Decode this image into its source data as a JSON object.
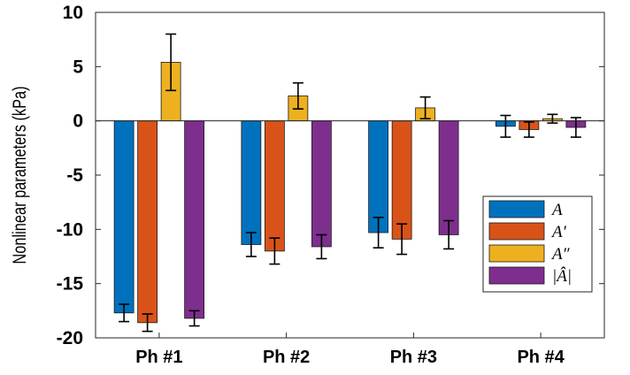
{
  "chart_data": {
    "type": "bar",
    "title": "",
    "xlabel": "",
    "ylabel": "Nonlinear parameters (kPa)",
    "ylim": [
      -20,
      10
    ],
    "yticks": [
      10,
      5,
      0,
      -5,
      -10,
      -15,
      -20
    ],
    "categories": [
      "Ph #1",
      "Ph #2",
      "Ph #3",
      "Ph #4"
    ],
    "series": [
      {
        "name": "A",
        "color": "#0072BD",
        "values": [
          -17.7,
          -11.4,
          -10.3,
          -0.5
        ],
        "errors": [
          0.8,
          1.1,
          1.4,
          1.0
        ]
      },
      {
        "name": "A′",
        "color": "#D95319",
        "values": [
          -18.6,
          -12.0,
          -10.9,
          -0.8
        ],
        "errors": [
          0.8,
          1.2,
          1.4,
          0.7
        ]
      },
      {
        "name": "A″",
        "color": "#EDB120",
        "values": [
          5.4,
          2.3,
          1.2,
          0.2
        ],
        "errors": [
          2.6,
          1.2,
          1.0,
          0.4
        ]
      },
      {
        "name": "|Â|",
        "color": "#7E2F8E",
        "values": [
          -18.2,
          -11.6,
          -10.5,
          -0.6
        ],
        "errors": [
          0.7,
          1.1,
          1.3,
          0.9
        ]
      }
    ],
    "legend_position": "lower-right",
    "grid": false
  }
}
